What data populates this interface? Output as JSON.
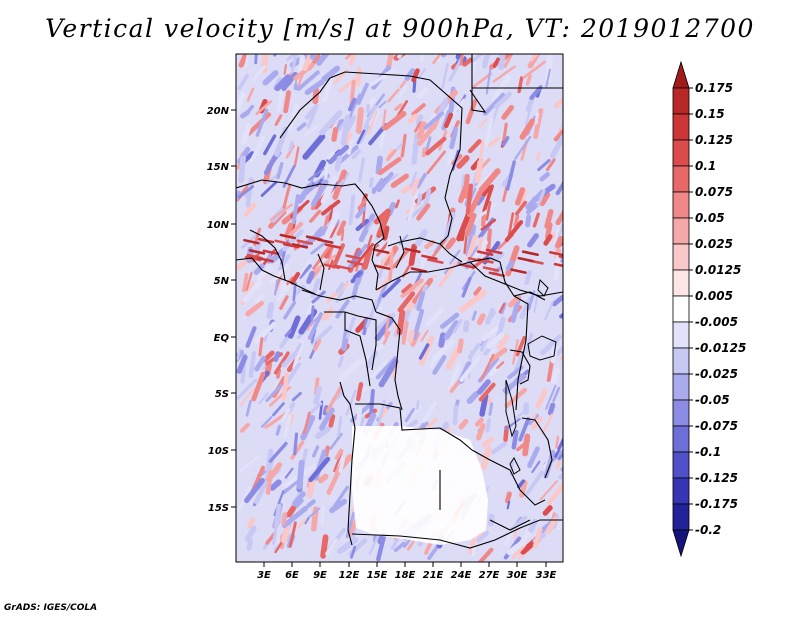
{
  "title": "Vertical velocity [m/s] at 900hPa, VT: 2019012700",
  "credit": "GrADS: IGES/COLA",
  "map": {
    "lat_labels": [
      "20N",
      "15N",
      "10N",
      "5N",
      "EQ",
      "5S",
      "10S",
      "15S"
    ],
    "lon_labels": [
      "3E",
      "6E",
      "9E",
      "12E",
      "15E",
      "18E",
      "21E",
      "24E",
      "27E",
      "30E",
      "33E"
    ]
  },
  "colorbar": {
    "labels": [
      "0.175",
      "0.15",
      "0.125",
      "0.1",
      "0.075",
      "0.05",
      "0.025",
      "0.0125",
      "0.005",
      "-0.005",
      "-0.0125",
      "-0.025",
      "-0.05",
      "-0.075",
      "-0.1",
      "-0.125",
      "-0.175",
      "-0.2"
    ],
    "colors": [
      "#a31a1a",
      "#b82828",
      "#cc3636",
      "#dc4c4c",
      "#e86868",
      "#f08888",
      "#f6a8a8",
      "#fac8c8",
      "#fde6e6",
      "#ffffff",
      "#e2e2fa",
      "#c8c8f4",
      "#aaaaee",
      "#8c8ce4",
      "#6e6ed8",
      "#5050c8",
      "#3636b4",
      "#222299",
      "#14147a"
    ]
  }
}
